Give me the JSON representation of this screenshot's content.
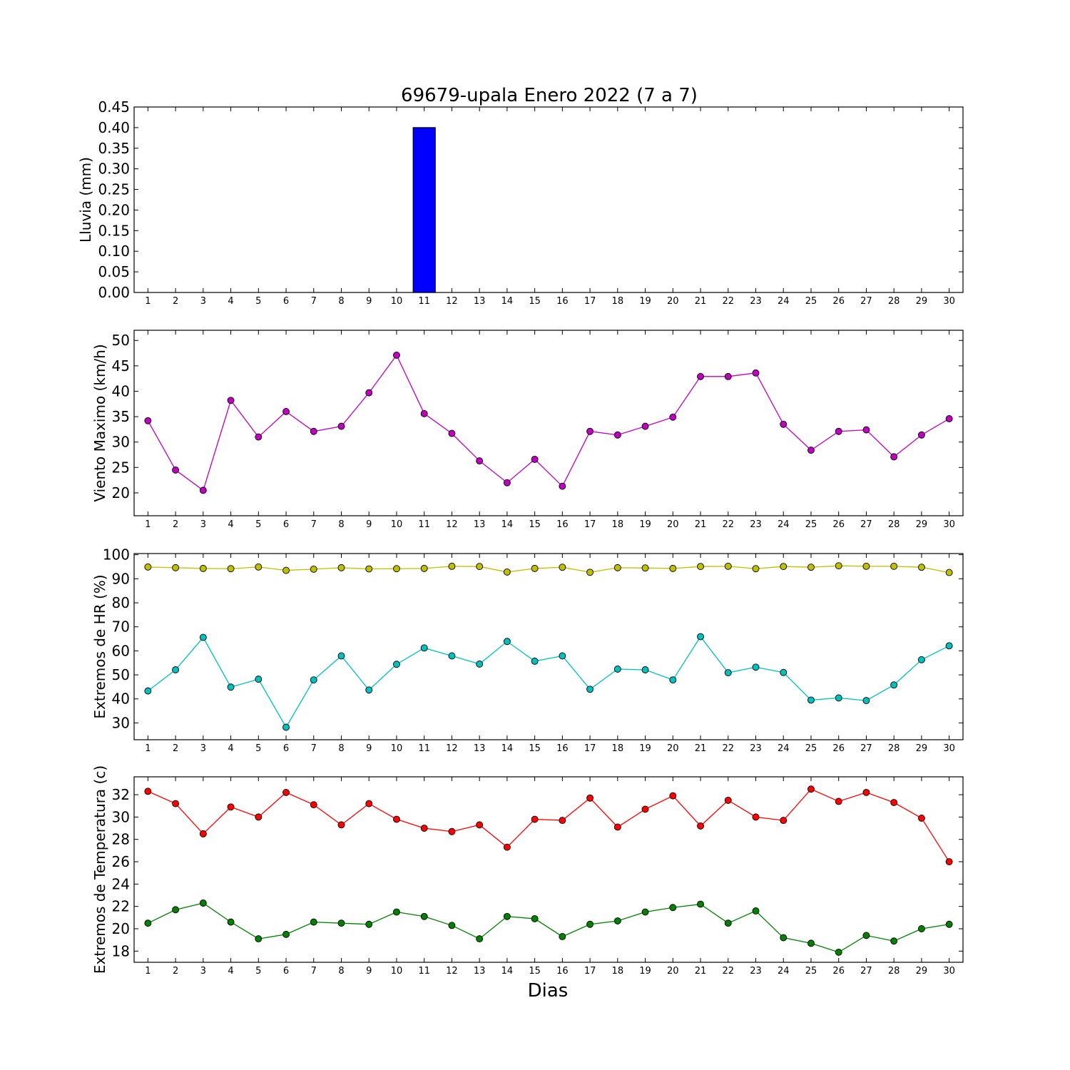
{
  "figure": {
    "title": "69679-upala Enero 2022  (7 a 7)",
    "xlabel": "Dias"
  },
  "chart_data": [
    {
      "type": "bar",
      "ylabel": "Lluvia (mm)",
      "x": [
        1,
        2,
        3,
        4,
        5,
        6,
        7,
        8,
        9,
        10,
        11,
        12,
        13,
        14,
        15,
        16,
        17,
        18,
        19,
        20,
        21,
        22,
        23,
        24,
        25,
        26,
        27,
        28,
        29,
        30
      ],
      "xlim": [
        0.5,
        30.5
      ],
      "ylim": [
        0,
        0.45
      ],
      "yticks": [
        0.0,
        0.05,
        0.1,
        0.15,
        0.2,
        0.25,
        0.3,
        0.35,
        0.4,
        0.45
      ],
      "ytick_labels": [
        "0.00",
        "0.05",
        "0.10",
        "0.15",
        "0.20",
        "0.25",
        "0.30",
        "0.35",
        "0.40",
        "0.45"
      ],
      "grid": false,
      "series": [
        {
          "color": "#0000ff",
          "values": [
            0,
            0,
            0,
            0,
            0,
            0,
            0,
            0,
            0,
            0,
            0.4,
            0,
            0,
            0,
            0,
            0,
            0,
            0,
            0,
            0,
            0,
            0,
            0,
            0,
            0,
            0,
            0,
            0,
            0,
            0
          ]
        }
      ]
    },
    {
      "type": "line",
      "ylabel": "Viento Maximo (km/h)",
      "x": [
        1,
        2,
        3,
        4,
        5,
        6,
        7,
        8,
        9,
        10,
        11,
        12,
        13,
        14,
        15,
        16,
        17,
        18,
        19,
        20,
        21,
        22,
        23,
        24,
        25,
        26,
        27,
        28,
        29,
        30
      ],
      "xlim": [
        0.5,
        30.5
      ],
      "ylim": [
        15.5,
        52
      ],
      "yticks": [
        20,
        25,
        30,
        35,
        40,
        45,
        50
      ],
      "ytick_labels": [
        "20",
        "25",
        "30",
        "35",
        "40",
        "45",
        "50"
      ],
      "grid": false,
      "series": [
        {
          "color": "#bf00bf",
          "values": [
            34.2,
            24.5,
            20.5,
            38.2,
            31.0,
            36.0,
            32.1,
            33.1,
            39.7,
            47.1,
            35.6,
            31.7,
            26.3,
            22.0,
            26.6,
            21.3,
            32.1,
            31.4,
            33.1,
            34.9,
            42.9,
            42.9,
            43.6,
            33.5,
            28.4,
            32.1,
            32.4,
            27.1,
            31.4,
            34.6
          ]
        }
      ]
    },
    {
      "type": "line",
      "ylabel": "Extremos de HR (%)",
      "x": [
        1,
        2,
        3,
        4,
        5,
        6,
        7,
        8,
        9,
        10,
        11,
        12,
        13,
        14,
        15,
        16,
        17,
        18,
        19,
        20,
        21,
        22,
        23,
        24,
        25,
        26,
        27,
        28,
        29,
        30
      ],
      "xlim": [
        0.5,
        30.5
      ],
      "ylim": [
        23,
        100.5
      ],
      "yticks": [
        30,
        40,
        50,
        60,
        70,
        80,
        90,
        100
      ],
      "ytick_labels": [
        "30",
        "40",
        "50",
        "60",
        "70",
        "80",
        "90",
        "100"
      ],
      "grid": false,
      "series": [
        {
          "color": "#bfbf00",
          "values": [
            94.9,
            94.6,
            94.3,
            94.2,
            94.9,
            93.5,
            94.0,
            94.6,
            94.1,
            94.2,
            94.3,
            95.2,
            95.1,
            92.8,
            94.3,
            94.8,
            92.7,
            94.6,
            94.5,
            94.3,
            95.1,
            95.2,
            94.2,
            95.1,
            94.8,
            95.4,
            95.2,
            95.2,
            94.8,
            92.6
          ]
        },
        {
          "color": "#00bfbf",
          "values": [
            43.3,
            52.1,
            65.6,
            44.9,
            48.2,
            28.2,
            47.9,
            57.9,
            43.7,
            54.4,
            61.2,
            57.9,
            54.5,
            63.9,
            55.7,
            57.9,
            44.0,
            52.4,
            52.1,
            47.9,
            65.9,
            50.9,
            53.2,
            51.0,
            39.5,
            40.4,
            39.3,
            45.8,
            56.3,
            62.1
          ]
        }
      ]
    },
    {
      "type": "line",
      "ylabel": "Extremos de Temperatura (c)",
      "x": [
        1,
        2,
        3,
        4,
        5,
        6,
        7,
        8,
        9,
        10,
        11,
        12,
        13,
        14,
        15,
        16,
        17,
        18,
        19,
        20,
        21,
        22,
        23,
        24,
        25,
        26,
        27,
        28,
        29,
        30
      ],
      "xlim": [
        0.5,
        30.5
      ],
      "ylim": [
        17,
        33.6
      ],
      "yticks": [
        18,
        20,
        22,
        24,
        26,
        28,
        30,
        32
      ],
      "ytick_labels": [
        "18",
        "20",
        "22",
        "24",
        "26",
        "28",
        "30",
        "32"
      ],
      "grid": false,
      "series": [
        {
          "color": "#ff0000",
          "values": [
            32.3,
            31.2,
            28.5,
            30.9,
            30.0,
            32.2,
            31.1,
            29.3,
            31.2,
            29.8,
            29.0,
            28.7,
            29.3,
            27.3,
            29.8,
            29.7,
            31.7,
            29.1,
            30.7,
            31.9,
            29.2,
            31.5,
            30.0,
            29.7,
            32.5,
            31.4,
            32.2,
            31.3,
            29.9,
            26.0
          ]
        },
        {
          "color": "#008000",
          "values": [
            20.5,
            21.7,
            22.3,
            20.6,
            19.1,
            19.5,
            20.6,
            20.5,
            20.4,
            21.5,
            21.1,
            20.3,
            19.1,
            21.1,
            20.9,
            19.3,
            20.4,
            20.7,
            21.5,
            21.9,
            22.2,
            20.5,
            21.6,
            19.2,
            18.7,
            17.9,
            19.4,
            18.9,
            20.0,
            20.4
          ]
        }
      ]
    }
  ]
}
